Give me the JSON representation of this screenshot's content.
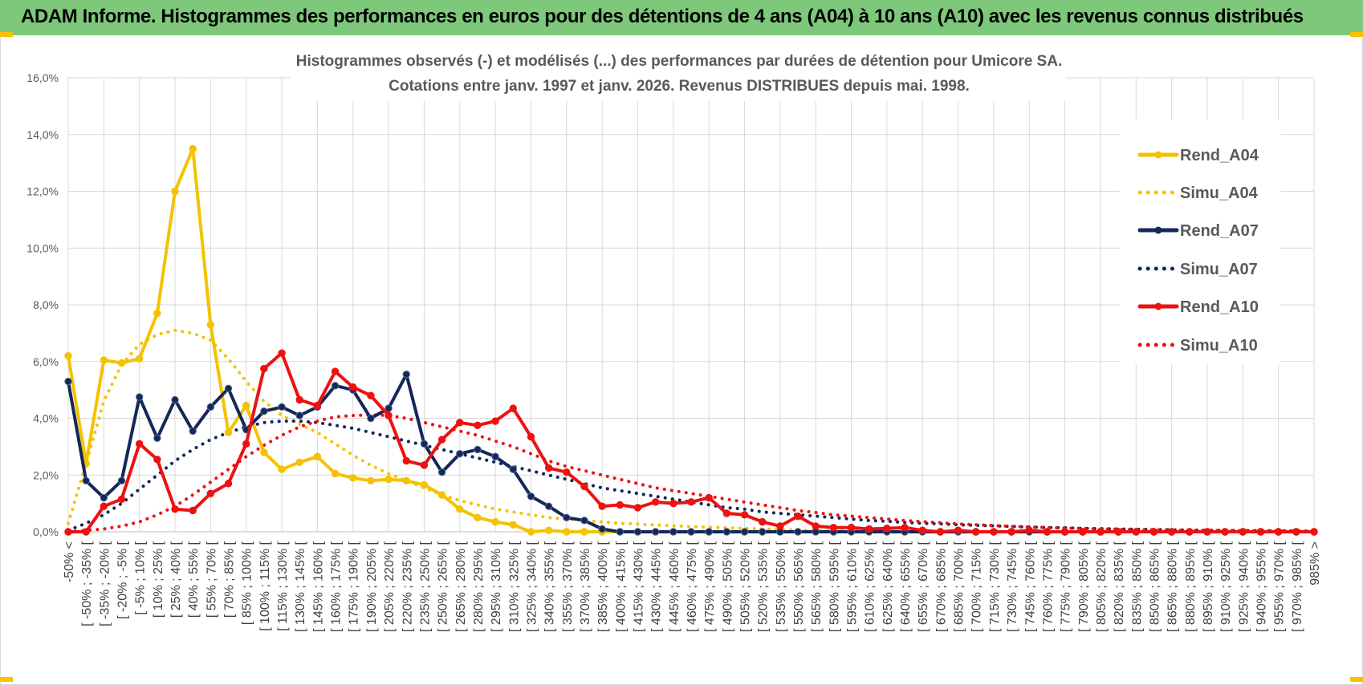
{
  "header": {
    "title": "ADAM Informe. Histogrammes des performances en euros pour des détentions de 4 ans (A04) à 10 ans (A10) avec les revenus connus distribués"
  },
  "colors": {
    "banner": "#7dc87a",
    "A04": "#f5c200",
    "A07": "#13275a",
    "A10": "#ee1111",
    "grid": "#d9d9d9",
    "text": "#595959"
  },
  "chart_data": {
    "type": "line",
    "title_lines": [
      "Histogrammes observés (-) et modélisés (...) des performances par durées de détention pour Umicore SA.",
      "Cotations entre janv. 1997 et janv. 2026. Revenus DISTRIBUES depuis mai. 1998."
    ],
    "ylim": [
      0,
      16
    ],
    "yticks": [
      "0,0%",
      "2,0%",
      "4,0%",
      "6,0%",
      "8,0%",
      "10,0%",
      "12,0%",
      "14,0%",
      "16,0%"
    ],
    "categories": [
      "-50% <",
      "[ -50% ; -35% [",
      "[ -35% ; -20% [",
      "[ -20% ; -5% [",
      "[ -5% ; 10% [",
      "[ 10% ; 25% [",
      "[ 25% ; 40% [",
      "[ 40% ; 55% [",
      "[ 55% ; 70% [",
      "[ 70% ; 85% [",
      "[ 85% ; 100% [",
      "[ 100% ; 115% [",
      "[ 115% ; 130% [",
      "[ 130% ; 145% [",
      "[ 145% ; 160% [",
      "[ 160% ; 175% [",
      "[ 175% ; 190% [",
      "[ 190% ; 205% [",
      "[ 205% ; 220% [",
      "[ 220% ; 235% [",
      "[ 235% ; 250% [",
      "[ 250% ; 265% [",
      "[ 265% ; 280% [",
      "[ 280% ; 295% [",
      "[ 295% ; 310% [",
      "[ 310% ; 325% [",
      "[ 325% ; 340% [",
      "[ 340% ; 355% [",
      "[ 355% ; 370% [",
      "[ 370% ; 385% [",
      "[ 385% ; 400% [",
      "[ 400% ; 415% [",
      "[ 415% ; 430% [",
      "[ 430% ; 445% [",
      "[ 445% ; 460% [",
      "[ 460% ; 475% [",
      "[ 475% ; 490% [",
      "[ 490% ; 505% [",
      "[ 505% ; 520% [",
      "[ 520% ; 535% [",
      "[ 535% ; 550% [",
      "[ 550% ; 565% [",
      "[ 565% ; 580% [",
      "[ 580% ; 595% [",
      "[ 595% ; 610% [",
      "[ 610% ; 625% [",
      "[ 625% ; 640% [",
      "[ 640% ; 655% [",
      "[ 655% ; 670% [",
      "[ 670% ; 685% [",
      "[ 685% ; 700% [",
      "[ 700% ; 715% [",
      "[ 715% ; 730% [",
      "[ 730% ; 745% [",
      "[ 745% ; 760% [",
      "[ 760% ; 775% [",
      "[ 775% ; 790% [",
      "[ 790% ; 805% [",
      "[ 805% ; 820% [",
      "[ 820% ; 835% [",
      "[ 835% ; 850% [",
      "[ 850% ; 865% [",
      "[ 865% ; 880% [",
      "[ 880% ; 895% [",
      "[ 895% ; 910% [",
      "[ 910% ; 925% [",
      "[ 925% ; 940% [",
      "[ 940% ; 955% [",
      "[ 955% ; 970% [",
      "[ 970% ; 985% [",
      "985% >"
    ],
    "series": [
      {
        "name": "Rend_A04",
        "style": "solid",
        "color": "#f5c200",
        "markers": true,
        "values": [
          6.2,
          2.4,
          6.05,
          5.95,
          6.1,
          7.7,
          12.0,
          13.5,
          7.3,
          3.5,
          4.45,
          2.8,
          2.2,
          2.45,
          2.65,
          2.05,
          1.9,
          1.8,
          1.85,
          1.8,
          1.65,
          1.3,
          0.8,
          0.5,
          0.35,
          0.25,
          0.0,
          0.05,
          0,
          0,
          0,
          0,
          0,
          0,
          0,
          0,
          0,
          0,
          0,
          0,
          0,
          0,
          0,
          0,
          0,
          0,
          0,
          0,
          0,
          0,
          0,
          0,
          0,
          0,
          0,
          0,
          0,
          0,
          0,
          0,
          0,
          0,
          0,
          0,
          0,
          0,
          0,
          0,
          0,
          0,
          0
        ]
      },
      {
        "name": "Simu_A04",
        "style": "dotted",
        "color": "#f5c200",
        "markers": false,
        "values": [
          0.3,
          2.4,
          4.6,
          5.9,
          6.6,
          6.95,
          7.1,
          7.0,
          6.75,
          6.1,
          5.3,
          4.6,
          4.1,
          3.8,
          3.5,
          3.1,
          2.7,
          2.35,
          2.05,
          1.8,
          1.55,
          1.3,
          1.1,
          0.95,
          0.8,
          0.7,
          0.6,
          0.5,
          0.45,
          0.4,
          0.35,
          0.3,
          0.27,
          0.24,
          0.21,
          0.18,
          0.16,
          0.14,
          0.12,
          0.1,
          0.08,
          0.06,
          0.05,
          0.04,
          0.03,
          0.02,
          0.02,
          0.01,
          0.01,
          0,
          0,
          0,
          0,
          0,
          0,
          0,
          0,
          0,
          0,
          0,
          0,
          0,
          0,
          0,
          0,
          0,
          0,
          0,
          0,
          0,
          0
        ]
      },
      {
        "name": "Rend_A07",
        "style": "solid",
        "color": "#13275a",
        "markers": true,
        "values": [
          5.3,
          1.8,
          1.2,
          1.8,
          4.75,
          3.3,
          4.65,
          3.55,
          4.4,
          5.05,
          3.6,
          4.25,
          4.4,
          4.1,
          4.4,
          5.15,
          5.0,
          4.0,
          4.35,
          5.55,
          3.1,
          2.1,
          2.75,
          2.9,
          2.65,
          2.2,
          1.25,
          0.9,
          0.5,
          0.4,
          0.1,
          0,
          0,
          0,
          0,
          0,
          0,
          0,
          0,
          0,
          0,
          0,
          0,
          0,
          0,
          0,
          0,
          0,
          0,
          0,
          0,
          0,
          0,
          0,
          0,
          0,
          0,
          0,
          0,
          0,
          0,
          0,
          0,
          0,
          0,
          0,
          0,
          0,
          0,
          0,
          0
        ]
      },
      {
        "name": "Simu_A07",
        "style": "dotted",
        "color": "#13275a",
        "markers": false,
        "values": [
          0.05,
          0.3,
          0.6,
          1.0,
          1.5,
          2.0,
          2.5,
          2.9,
          3.25,
          3.5,
          3.7,
          3.85,
          3.9,
          3.9,
          3.85,
          3.75,
          3.65,
          3.5,
          3.35,
          3.2,
          3.05,
          2.9,
          2.75,
          2.6,
          2.45,
          2.3,
          2.15,
          2.0,
          1.85,
          1.7,
          1.55,
          1.45,
          1.35,
          1.25,
          1.15,
          1.05,
          0.95,
          0.85,
          0.8,
          0.7,
          0.65,
          0.6,
          0.55,
          0.5,
          0.45,
          0.4,
          0.37,
          0.33,
          0.3,
          0.28,
          0.25,
          0.23,
          0.21,
          0.19,
          0.17,
          0.15,
          0.14,
          0.12,
          0.11,
          0.1,
          0.09,
          0.08,
          0.07,
          0.06,
          0.05,
          0.05,
          0.04,
          0.04,
          0.03,
          0.03,
          0.02
        ]
      },
      {
        "name": "Rend_A10",
        "style": "solid",
        "color": "#ee1111",
        "markers": true,
        "values": [
          0,
          0,
          0.9,
          1.15,
          3.1,
          2.55,
          0.8,
          0.75,
          1.35,
          1.7,
          3.1,
          5.75,
          6.3,
          4.65,
          4.45,
          5.65,
          5.1,
          4.8,
          4.1,
          2.5,
          2.35,
          3.25,
          3.85,
          3.75,
          3.9,
          4.35,
          3.35,
          2.25,
          2.1,
          1.6,
          0.9,
          0.95,
          0.85,
          1.05,
          1.0,
          1.05,
          1.2,
          0.65,
          0.6,
          0.35,
          0.2,
          0.55,
          0.2,
          0.15,
          0.15,
          0.1,
          0.12,
          0.15,
          0.05,
          0,
          0.05,
          0,
          0,
          0,
          0.05,
          0,
          0,
          0,
          0,
          0,
          0,
          0,
          0,
          0,
          0,
          0,
          0,
          0,
          0,
          0,
          0
        ]
      },
      {
        "name": "Simu_A10",
        "style": "dotted",
        "color": "#ee1111",
        "markers": false,
        "values": [
          0,
          0.05,
          0.1,
          0.2,
          0.35,
          0.6,
          0.9,
          1.3,
          1.75,
          2.2,
          2.65,
          3.05,
          3.4,
          3.7,
          3.9,
          4.05,
          4.1,
          4.12,
          4.1,
          4.0,
          3.85,
          3.7,
          3.55,
          3.4,
          3.2,
          3.0,
          2.75,
          2.5,
          2.3,
          2.15,
          2.0,
          1.85,
          1.7,
          1.55,
          1.45,
          1.35,
          1.25,
          1.15,
          1.05,
          0.95,
          0.85,
          0.75,
          0.68,
          0.6,
          0.55,
          0.5,
          0.45,
          0.4,
          0.36,
          0.32,
          0.28,
          0.25,
          0.22,
          0.19,
          0.17,
          0.15,
          0.13,
          0.12,
          0.1,
          0.09,
          0.08,
          0.07,
          0.06,
          0.05,
          0.05,
          0.04,
          0.04,
          0.03,
          0.03,
          0.02,
          0.02
        ]
      }
    ],
    "legend_position": "top-right"
  }
}
